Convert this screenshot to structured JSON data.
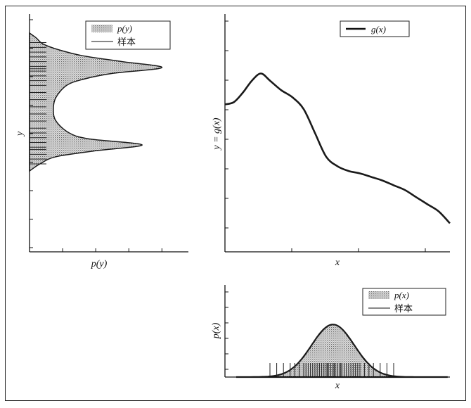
{
  "chart_data": [
    {
      "id": "py",
      "type": "area",
      "xlabel": "p(y)",
      "ylabel": "y",
      "legend": {
        "position": "top",
        "entries": [
          "p(y)",
          "样本"
        ]
      },
      "orientation": "horizontal",
      "grid": false,
      "ylim": [
        0,
        1
      ],
      "xlim": [
        0,
        1.2
      ],
      "density": {
        "y": [
          0.34,
          0.37,
          0.4,
          0.425,
          0.45,
          0.475,
          0.5,
          0.55,
          0.6,
          0.65,
          0.7,
          0.725,
          0.75,
          0.775,
          0.8,
          0.825,
          0.85,
          0.875,
          0.9,
          0.92
        ],
        "p": [
          0.0,
          0.08,
          0.2,
          0.5,
          0.85,
          0.45,
          0.3,
          0.2,
          0.18,
          0.2,
          0.28,
          0.4,
          0.62,
          1.0,
          0.7,
          0.4,
          0.22,
          0.1,
          0.05,
          0.0
        ]
      },
      "samples_y": [
        0.37,
        0.39,
        0.41,
        0.43,
        0.44,
        0.46,
        0.48,
        0.5,
        0.52,
        0.55,
        0.58,
        0.61,
        0.64,
        0.67,
        0.7,
        0.72,
        0.74,
        0.76,
        0.77,
        0.78,
        0.8,
        0.82,
        0.84,
        0.86,
        0.88
      ]
    },
    {
      "id": "gx",
      "type": "line",
      "xlabel": "x",
      "ylabel": "y = g(x)",
      "legend": {
        "position": "top-right",
        "entries": [
          "g(x)"
        ]
      },
      "grid": false,
      "xlim": [
        0,
        1
      ],
      "ylim": [
        0,
        1
      ],
      "series": [
        {
          "name": "g(x)",
          "x": [
            0.0,
            0.04,
            0.08,
            0.12,
            0.16,
            0.2,
            0.25,
            0.3,
            0.35,
            0.4,
            0.45,
            0.5,
            0.55,
            0.6,
            0.65,
            0.7,
            0.75,
            0.8,
            0.85,
            0.9,
            0.95,
            1.0
          ],
          "y": [
            0.62,
            0.63,
            0.67,
            0.72,
            0.75,
            0.72,
            0.68,
            0.65,
            0.6,
            0.5,
            0.4,
            0.36,
            0.34,
            0.33,
            0.315,
            0.3,
            0.28,
            0.26,
            0.23,
            0.2,
            0.17,
            0.12
          ]
        }
      ]
    },
    {
      "id": "px",
      "type": "area",
      "xlabel": "x",
      "ylabel": "p(x)",
      "legend": {
        "position": "top-right",
        "entries": [
          "p(x)",
          "样本"
        ]
      },
      "grid": false,
      "xlim": [
        0,
        1
      ],
      "ylim": [
        0,
        1
      ],
      "density": {
        "mean": 0.48,
        "sd": 0.095,
        "peak": 0.57,
        "xmin": 0.05,
        "xmax": 0.99
      },
      "samples_x": [
        0.2,
        0.23,
        0.26,
        0.29,
        0.31,
        0.33,
        0.35,
        0.36,
        0.37,
        0.38,
        0.39,
        0.4,
        0.41,
        0.42,
        0.43,
        0.44,
        0.45,
        0.455,
        0.46,
        0.47,
        0.48,
        0.485,
        0.49,
        0.5,
        0.51,
        0.515,
        0.52,
        0.53,
        0.54,
        0.55,
        0.56,
        0.57,
        0.58,
        0.59,
        0.6,
        0.62,
        0.64,
        0.66,
        0.69,
        0.72,
        0.75
      ]
    }
  ]
}
